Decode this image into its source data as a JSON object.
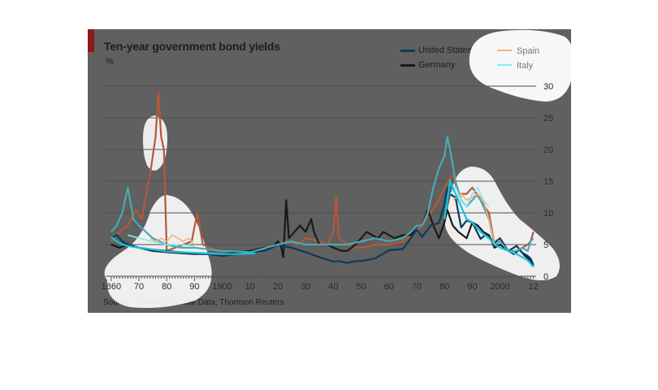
{
  "chart_data": {
    "type": "line",
    "title": "Ten-year government bond yields",
    "unit_label": "%",
    "source": "Sources: Global Financial Data; Thomson Reuters",
    "xlim": [
      1858,
      2013
    ],
    "ylim": [
      0,
      30
    ],
    "y_ticks": [
      0,
      5,
      10,
      15,
      20,
      25,
      30
    ],
    "x_ticks": [
      {
        "year": 1860,
        "label": "1860"
      },
      {
        "year": 1870,
        "label": "70"
      },
      {
        "year": 1880,
        "label": "80"
      },
      {
        "year": 1890,
        "label": "90"
      },
      {
        "year": 1900,
        "label": "1900"
      },
      {
        "year": 1910,
        "label": "10"
      },
      {
        "year": 1920,
        "label": "20"
      },
      {
        "year": 1930,
        "label": "30"
      },
      {
        "year": 1940,
        "label": "40"
      },
      {
        "year": 1950,
        "label": "50"
      },
      {
        "year": 1960,
        "label": "60"
      },
      {
        "year": 1970,
        "label": "70"
      },
      {
        "year": 1980,
        "label": "80"
      },
      {
        "year": 1990,
        "label": "90"
      },
      {
        "year": 2000,
        "label": "2000"
      },
      {
        "year": 2012,
        "label": "12"
      }
    ],
    "grid": true,
    "legend_position": "top-right",
    "series": [
      {
        "name": "Spain",
        "color": "#b5583b",
        "points": [
          [
            1860,
            5.5
          ],
          [
            1863,
            7
          ],
          [
            1866,
            8
          ],
          [
            1869,
            10.5
          ],
          [
            1871,
            9
          ],
          [
            1873,
            14
          ],
          [
            1874,
            16
          ],
          [
            1875,
            19
          ],
          [
            1876,
            22
          ],
          [
            1877,
            29
          ],
          [
            1878,
            22
          ],
          [
            1879,
            20
          ],
          [
            1880,
            4
          ],
          [
            1883,
            4.5
          ],
          [
            1886,
            5
          ],
          [
            1889,
            5.5
          ],
          [
            1891,
            10
          ],
          [
            1893,
            5
          ],
          [
            1898,
            4
          ],
          [
            1905,
            3.5
          ],
          [
            1910,
            3.8
          ],
          [
            1915,
            4.5
          ],
          [
            1920,
            5
          ],
          [
            1923,
            5.5
          ],
          [
            1927,
            5
          ],
          [
            1930,
            6
          ],
          [
            1935,
            5.5
          ],
          [
            1938,
            5
          ],
          [
            1940,
            7
          ],
          [
            1941,
            12.5
          ],
          [
            1942,
            6
          ],
          [
            1945,
            5
          ],
          [
            1948,
            4.5
          ],
          [
            1950,
            4.5
          ],
          [
            1955,
            5
          ],
          [
            1960,
            5
          ],
          [
            1965,
            5.5
          ],
          [
            1970,
            7
          ],
          [
            1975,
            10
          ],
          [
            1978,
            12
          ],
          [
            1980,
            14
          ],
          [
            1983,
            16
          ],
          [
            1985,
            13
          ],
          [
            1988,
            13
          ],
          [
            1990,
            14
          ],
          [
            1993,
            12
          ],
          [
            1996,
            10
          ],
          [
            1998,
            5
          ],
          [
            2000,
            5.5
          ],
          [
            2003,
            4
          ],
          [
            2006,
            4
          ],
          [
            2008,
            4.5
          ],
          [
            2010,
            5
          ],
          [
            2011,
            5.5
          ],
          [
            2012,
            7
          ]
        ]
      },
      {
        "name": "Germany",
        "color": "#1a1a1a",
        "points": [
          [
            1860,
            5
          ],
          [
            1863,
            4.5
          ],
          [
            1866,
            5
          ],
          [
            1870,
            4.5
          ],
          [
            1875,
            4
          ],
          [
            1880,
            3.8
          ],
          [
            1890,
            3.5
          ],
          [
            1900,
            3.5
          ],
          [
            1910,
            4
          ],
          [
            1915,
            4.5
          ],
          [
            1918,
            4.5
          ],
          [
            1920,
            5.5
          ],
          [
            1921,
            5
          ],
          [
            1922,
            3
          ],
          [
            1923,
            12
          ],
          [
            1924,
            6
          ],
          [
            1926,
            7
          ],
          [
            1928,
            8
          ],
          [
            1930,
            7
          ],
          [
            1932,
            9
          ],
          [
            1933,
            7
          ],
          [
            1935,
            5
          ],
          [
            1938,
            5
          ],
          [
            1940,
            4.5
          ],
          [
            1943,
            4
          ],
          [
            1945,
            4
          ],
          [
            1948,
            5
          ],
          [
            1950,
            6
          ],
          [
            1952,
            7
          ],
          [
            1954,
            6.5
          ],
          [
            1956,
            6
          ],
          [
            1958,
            7
          ],
          [
            1960,
            6.5
          ],
          [
            1962,
            6
          ],
          [
            1965,
            6.5
          ],
          [
            1968,
            6.5
          ],
          [
            1970,
            8
          ],
          [
            1972,
            8
          ],
          [
            1974,
            10.5
          ],
          [
            1976,
            8
          ],
          [
            1978,
            6
          ],
          [
            1980,
            8.5
          ],
          [
            1981,
            10.5
          ],
          [
            1983,
            8
          ],
          [
            1985,
            7
          ],
          [
            1988,
            6
          ],
          [
            1990,
            8.5
          ],
          [
            1992,
            8
          ],
          [
            1994,
            7
          ],
          [
            1996,
            6.5
          ],
          [
            1998,
            4.5
          ],
          [
            2000,
            5
          ],
          [
            2003,
            4
          ],
          [
            2005,
            3.5
          ],
          [
            2007,
            4.2
          ],
          [
            2009,
            3.2
          ],
          [
            2011,
            2.5
          ],
          [
            2012,
            1.5
          ]
        ]
      },
      {
        "name": "United States",
        "color": "#0b3a5c",
        "points": [
          [
            1860,
            6
          ],
          [
            1862,
            6.5
          ],
          [
            1864,
            5.5
          ],
          [
            1866,
            5
          ],
          [
            1870,
            4.5
          ],
          [
            1875,
            4.2
          ],
          [
            1880,
            4
          ],
          [
            1885,
            3.8
          ],
          [
            1890,
            3.6
          ],
          [
            1895,
            3.5
          ],
          [
            1900,
            3.2
          ],
          [
            1905,
            3.5
          ],
          [
            1910,
            3.8
          ],
          [
            1915,
            4
          ],
          [
            1918,
            4.5
          ],
          [
            1920,
            5
          ],
          [
            1925,
            4.5
          ],
          [
            1930,
            3.8
          ],
          [
            1935,
            3
          ],
          [
            1940,
            2.3
          ],
          [
            1942,
            2.4
          ],
          [
            1945,
            2.1
          ],
          [
            1948,
            2.4
          ],
          [
            1950,
            2.4
          ],
          [
            1955,
            2.8
          ],
          [
            1960,
            4.1
          ],
          [
            1965,
            4.3
          ],
          [
            1970,
            7.3
          ],
          [
            1972,
            6.2
          ],
          [
            1975,
            8
          ],
          [
            1978,
            8.4
          ],
          [
            1980,
            11.4
          ],
          [
            1981,
            13.9
          ],
          [
            1982,
            13
          ],
          [
            1984,
            12.4
          ],
          [
            1986,
            7.7
          ],
          [
            1988,
            8.8
          ],
          [
            1990,
            8.5
          ],
          [
            1993,
            5.9
          ],
          [
            1995,
            6.6
          ],
          [
            1998,
            5.3
          ],
          [
            2000,
            6
          ],
          [
            2003,
            4
          ],
          [
            2006,
            4.8
          ],
          [
            2008,
            3.7
          ],
          [
            2010,
            3.2
          ],
          [
            2011,
            2.8
          ],
          [
            2012,
            1.8
          ]
        ]
      },
      {
        "name": "Italy",
        "color": "#49a9b5",
        "points": [
          [
            1860,
            7
          ],
          [
            1862,
            8
          ],
          [
            1864,
            10
          ],
          [
            1866,
            14
          ],
          [
            1868,
            9
          ],
          [
            1870,
            8
          ],
          [
            1875,
            6
          ],
          [
            1880,
            5
          ],
          [
            1885,
            4.5
          ],
          [
            1890,
            4.5
          ],
          [
            1900,
            4
          ],
          [
            1910,
            3.8
          ],
          [
            1920,
            5
          ],
          [
            1925,
            5.5
          ],
          [
            1930,
            5
          ],
          [
            1935,
            5
          ],
          [
            1940,
            5
          ],
          [
            1945,
            5
          ],
          [
            1950,
            5.5
          ],
          [
            1955,
            6
          ],
          [
            1960,
            5.5
          ],
          [
            1965,
            6
          ],
          [
            1968,
            7
          ],
          [
            1970,
            8
          ],
          [
            1972,
            8
          ],
          [
            1974,
            10
          ],
          [
            1976,
            14
          ],
          [
            1978,
            17
          ],
          [
            1980,
            19
          ],
          [
            1981,
            22
          ],
          [
            1982,
            20
          ],
          [
            1984,
            15
          ],
          [
            1986,
            12
          ],
          [
            1988,
            11
          ],
          [
            1990,
            12
          ],
          [
            1992,
            13
          ],
          [
            1994,
            11
          ],
          [
            1996,
            9
          ],
          [
            1998,
            5
          ],
          [
            2000,
            5.5
          ],
          [
            2003,
            4
          ],
          [
            2006,
            4
          ],
          [
            2008,
            4.5
          ],
          [
            2010,
            4
          ],
          [
            2011,
            5.5
          ],
          [
            2012,
            6
          ]
        ]
      }
    ],
    "legend": [
      {
        "name": "United States",
        "color": "#0b3a5c"
      },
      {
        "name": "Germany",
        "color": "#1a1a1a"
      },
      {
        "name": "Spain",
        "color": "#f4b07a"
      },
      {
        "name": "Italy",
        "color": "#7ff0f0"
      }
    ],
    "overlays": {
      "line_color": "#13c4e6",
      "points": [
        [
          1860,
          6.2
        ],
        [
          1862,
          5.5
        ],
        [
          1864,
          5
        ],
        [
          1866,
          4.8
        ],
        [
          1868,
          4.6
        ],
        [
          1870,
          4.5
        ],
        [
          1875,
          4.2
        ],
        [
          1880,
          3.9
        ],
        [
          1885,
          3.8
        ],
        [
          1890,
          3.7
        ],
        [
          1895,
          3.6
        ],
        [
          1900,
          3.5
        ],
        [
          1905,
          3.5
        ],
        [
          1910,
          3.6
        ],
        [
          1912,
          3.6
        ],
        [
          1980,
          9
        ],
        [
          1981,
          12
        ],
        [
          1982,
          15
        ],
        [
          1984,
          13
        ],
        [
          1986,
          11
        ],
        [
          1988,
          9
        ],
        [
          1990,
          8.5
        ],
        [
          1993,
          7
        ],
        [
          1996,
          6
        ],
        [
          1998,
          5
        ],
        [
          2000,
          4.5
        ],
        [
          2003,
          4
        ],
        [
          2006,
          3.5
        ],
        [
          2008,
          3
        ],
        [
          2010,
          2.5
        ],
        [
          2011,
          2
        ],
        [
          2012,
          1.5
        ]
      ],
      "spain_light_color": "#f4b07a",
      "spain_light_points": [
        [
          1874,
          6
        ],
        [
          1876,
          5.5
        ],
        [
          1878,
          6
        ],
        [
          1880,
          5.5
        ],
        [
          1882,
          6.5
        ],
        [
          1884,
          6
        ],
        [
          1886,
          5.5
        ],
        [
          1888,
          6
        ],
        [
          1890,
          5
        ],
        [
          1983,
          12
        ],
        [
          1986,
          13
        ],
        [
          1988,
          12
        ],
        [
          1990,
          12.5
        ],
        [
          1992,
          13
        ],
        [
          1994,
          12
        ],
        [
          1996,
          9
        ],
        [
          1998,
          5
        ]
      ],
      "italy_light_color": "#7ff0f0",
      "italy_light_points": [
        [
          1866,
          6.5
        ],
        [
          1870,
          6
        ],
        [
          1875,
          5.5
        ],
        [
          1880,
          5
        ],
        [
          1885,
          5
        ],
        [
          1890,
          4.8
        ],
        [
          1982,
          13
        ],
        [
          1984,
          14
        ],
        [
          1986,
          12
        ],
        [
          1988,
          11
        ],
        [
          1990,
          13
        ],
        [
          1992,
          14
        ],
        [
          1994,
          12
        ],
        [
          1996,
          11
        ]
      ]
    }
  }
}
